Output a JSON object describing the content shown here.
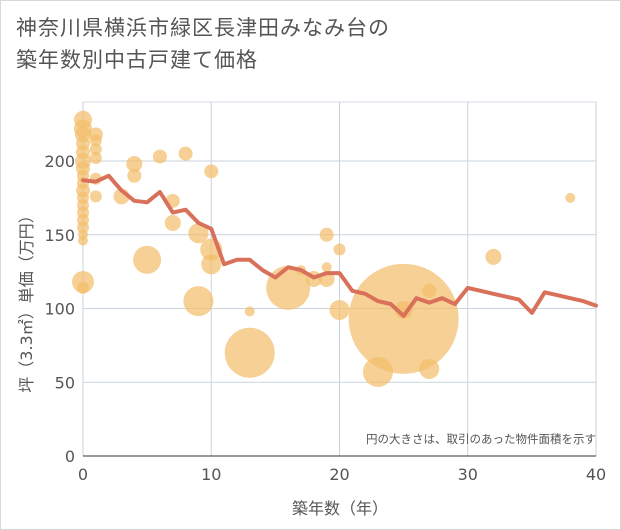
{
  "chart_data": {
    "type": "scatter",
    "title_line1": "神奈川県横浜市緑区長津田みなみ台の",
    "title_line2": "築年数別中古戸建て価格",
    "xlabel": "築年数（年）",
    "ylabel": "坪（3.3㎡）単価（万円）",
    "xlim": [
      0,
      40
    ],
    "ylim": [
      0,
      240
    ],
    "xticks": [
      0,
      10,
      20,
      30,
      40
    ],
    "yticks": [
      0,
      50,
      100,
      150,
      200
    ],
    "grid": true,
    "note": "円の大きさは、取引のあった物件面積を示す",
    "bubble_color": "#f3be6b",
    "line_color": "#d9705a",
    "scatter": [
      {
        "x": 0,
        "y": 228,
        "s": 9
      },
      {
        "x": 0,
        "y": 222,
        "s": 9
      },
      {
        "x": 0,
        "y": 218,
        "s": 8
      },
      {
        "x": 0,
        "y": 212,
        "s": 7
      },
      {
        "x": 0,
        "y": 206,
        "s": 7
      },
      {
        "x": 0,
        "y": 200,
        "s": 8
      },
      {
        "x": 0,
        "y": 195,
        "s": 7
      },
      {
        "x": 0,
        "y": 190,
        "s": 6
      },
      {
        "x": 0,
        "y": 185,
        "s": 6
      },
      {
        "x": 0,
        "y": 180,
        "s": 7
      },
      {
        "x": 0,
        "y": 175,
        "s": 6
      },
      {
        "x": 0,
        "y": 170,
        "s": 6
      },
      {
        "x": 0,
        "y": 165,
        "s": 6
      },
      {
        "x": 0,
        "y": 160,
        "s": 6
      },
      {
        "x": 0,
        "y": 155,
        "s": 6
      },
      {
        "x": 0,
        "y": 150,
        "s": 5
      },
      {
        "x": 0,
        "y": 146,
        "s": 5
      },
      {
        "x": 0,
        "y": 118,
        "s": 11
      },
      {
        "x": 0,
        "y": 114,
        "s": 6
      },
      {
        "x": 1,
        "y": 218,
        "s": 7
      },
      {
        "x": 1,
        "y": 214,
        "s": 6
      },
      {
        "x": 1,
        "y": 208,
        "s": 6
      },
      {
        "x": 1,
        "y": 202,
        "s": 6
      },
      {
        "x": 1,
        "y": 188,
        "s": 6
      },
      {
        "x": 1,
        "y": 176,
        "s": 6
      },
      {
        "x": 3,
        "y": 176,
        "s": 8
      },
      {
        "x": 4,
        "y": 198,
        "s": 8
      },
      {
        "x": 4,
        "y": 190,
        "s": 7
      },
      {
        "x": 5,
        "y": 133,
        "s": 14
      },
      {
        "x": 6,
        "y": 203,
        "s": 7
      },
      {
        "x": 7,
        "y": 173,
        "s": 7
      },
      {
        "x": 7,
        "y": 158,
        "s": 8
      },
      {
        "x": 8,
        "y": 205,
        "s": 7
      },
      {
        "x": 9,
        "y": 151,
        "s": 10
      },
      {
        "x": 9,
        "y": 105,
        "s": 15
      },
      {
        "x": 10,
        "y": 193,
        "s": 7
      },
      {
        "x": 10,
        "y": 140,
        "s": 11
      },
      {
        "x": 10,
        "y": 130,
        "s": 10
      },
      {
        "x": 13,
        "y": 98,
        "s": 5
      },
      {
        "x": 13,
        "y": 70,
        "s": 25
      },
      {
        "x": 16,
        "y": 114,
        "s": 22
      },
      {
        "x": 17,
        "y": 126,
        "s": 5
      },
      {
        "x": 18,
        "y": 120,
        "s": 8
      },
      {
        "x": 19,
        "y": 150,
        "s": 7
      },
      {
        "x": 19,
        "y": 128,
        "s": 5
      },
      {
        "x": 19,
        "y": 120,
        "s": 8
      },
      {
        "x": 20,
        "y": 140,
        "s": 6
      },
      {
        "x": 20,
        "y": 99,
        "s": 10
      },
      {
        "x": 23,
        "y": 57,
        "s": 15
      },
      {
        "x": 25,
        "y": 93,
        "s": 55
      },
      {
        "x": 25,
        "y": 99,
        "s": 9
      },
      {
        "x": 27,
        "y": 112,
        "s": 7
      },
      {
        "x": 27,
        "y": 59,
        "s": 10
      },
      {
        "x": 32,
        "y": 135,
        "s": 8
      },
      {
        "x": 38,
        "y": 175,
        "s": 5
      }
    ],
    "line": {
      "x": [
        0,
        1,
        2,
        3,
        4,
        5,
        6,
        7,
        8,
        9,
        10,
        11,
        12,
        13,
        14,
        15,
        16,
        17,
        18,
        19,
        20,
        21,
        22,
        23,
        24,
        25,
        26,
        27,
        28,
        29,
        30,
        31,
        32,
        33,
        34,
        35,
        36,
        37,
        38,
        39,
        40
      ],
      "y": [
        187,
        186,
        190,
        180,
        173,
        172,
        179,
        165,
        167,
        158,
        154,
        130,
        133,
        133,
        126,
        121,
        128,
        126,
        121,
        124,
        124,
        112,
        110,
        105,
        103,
        95,
        107,
        104,
        107,
        103,
        114,
        112,
        110,
        108,
        106,
        97,
        111,
        109,
        107,
        105,
        102
      ]
    }
  }
}
